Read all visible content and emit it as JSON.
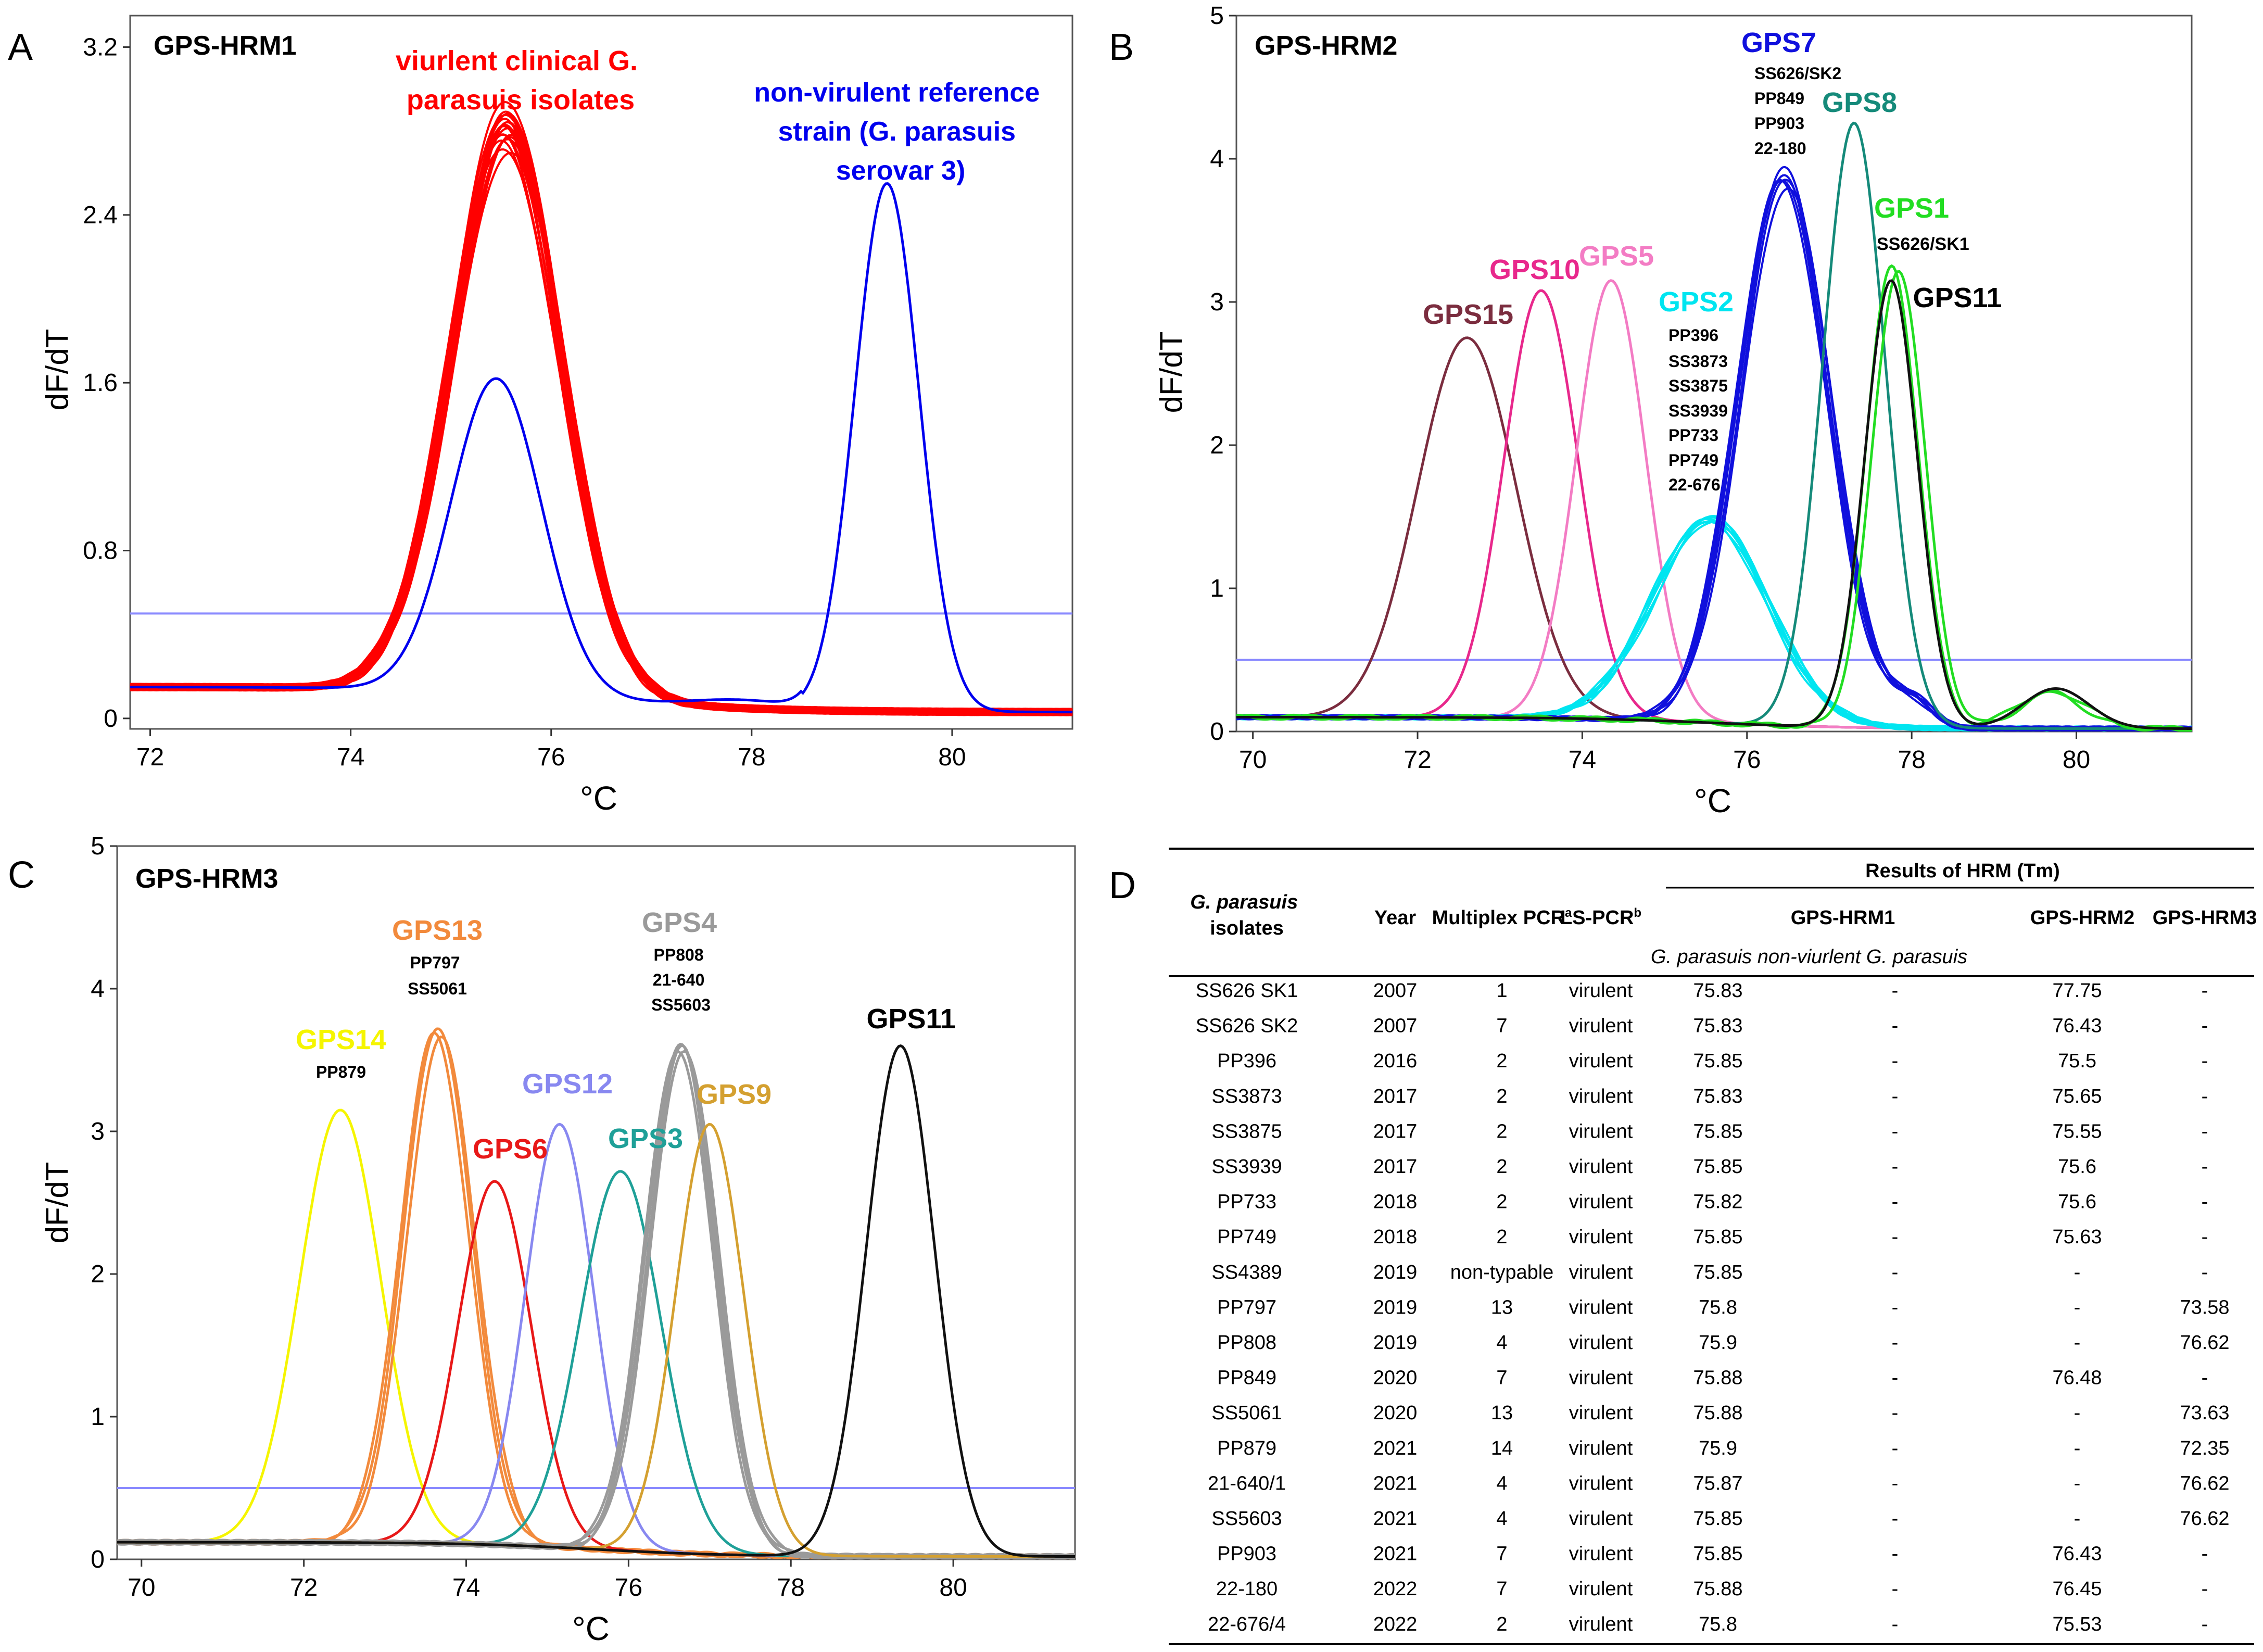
{
  "chart_data": [
    {
      "type": "line",
      "panel": "A",
      "title": "GPS-HRM1",
      "xlabel": "°C",
      "ylabel": "dF/dT",
      "xlim": [
        71.8,
        81.2
      ],
      "ylim": [
        -0.05,
        3.35
      ],
      "xticks": [
        72,
        74,
        76,
        78,
        80
      ],
      "yticks": [
        0,
        0.8,
        1.6,
        2.4,
        3.2
      ],
      "ytick_labels": [
        "0",
        "0.8",
        "1.6",
        "2.4",
        "3.2"
      ],
      "threshold": 0.5,
      "baseline_left": 0.15,
      "baseline_right": 0.03,
      "series": [
        {
          "name": "viurlent clinical isolates",
          "color": "#ff0000",
          "peaks": [
            [
              75.55,
              2.95,
              0.55
            ]
          ],
          "replicates": 19,
          "spread": 0.35
        },
        {
          "name": "reference strain main",
          "color": "#0000ee",
          "peaks": [
            [
              75.45,
              1.62,
              0.45
            ],
            [
              79.35,
              2.55,
              0.32
            ],
            [
              77.9,
              0.04,
              0.5
            ]
          ],
          "replicates": 1,
          "spread": 0
        }
      ],
      "annotations": [
        {
          "label": "viurlent clinical G. parasuis isolates",
          "lines": [
            "viurlent clinical G.",
            "parasuis isolates"
          ],
          "color": "#ff0000"
        },
        {
          "label": "non-virulent reference strain (G. parasuis serovar 3)",
          "lines": [
            "non-virulent reference",
            "strain (G. parasuis",
            "serovar 3)"
          ],
          "color": "#0000ee"
        }
      ]
    },
    {
      "type": "line",
      "panel": "B",
      "title": "GPS-HRM2",
      "xlabel": "°C",
      "ylabel": "dF/dT",
      "xlim": [
        69.8,
        81.4
      ],
      "ylim": [
        0,
        5
      ],
      "xticks": [
        70,
        72,
        74,
        76,
        78,
        80
      ],
      "yticks": [
        0,
        1,
        2,
        3,
        4,
        5
      ],
      "ytick_labels": [
        "0",
        "1",
        "2",
        "3",
        "4",
        "5"
      ],
      "threshold": 0.5,
      "baseline_left": 0.1,
      "baseline_right": 0.02,
      "series": [
        {
          "name": "GPS15",
          "color": "#7b2d3f",
          "peaks": [
            [
              72.6,
              2.75,
              0.6
            ]
          ],
          "replicates": 1,
          "spread": 0
        },
        {
          "name": "GPS10",
          "color": "#e8288c",
          "peaks": [
            [
              73.5,
              3.08,
              0.45
            ]
          ],
          "replicates": 1,
          "spread": 0
        },
        {
          "name": "GPS5",
          "color": "#f37cc4",
          "peaks": [
            [
              74.35,
              3.15,
              0.42
            ]
          ],
          "replicates": 1,
          "spread": 0
        },
        {
          "name": "GPS2",
          "color": "#00e5f0",
          "peaks": [
            [
              75.55,
              1.5,
              0.7
            ]
          ],
          "replicates": 7,
          "spread": 0.1
        },
        {
          "name": "GPS7",
          "color": "#1010dd",
          "peaks": [
            [
              76.45,
              3.95,
              0.55
            ],
            [
              78.0,
              0.2,
              0.25
            ]
          ],
          "replicates": 6,
          "spread": 0.15
        },
        {
          "name": "GPS8",
          "color": "#158a7a",
          "peaks": [
            [
              77.3,
              4.25,
              0.38
            ]
          ],
          "replicates": 1,
          "spread": 0
        },
        {
          "name": "GPS1",
          "color": "#22dd22",
          "peaks": [
            [
              77.8,
              3.3,
              0.32
            ],
            [
              79.7,
              0.28,
              0.4
            ]
          ],
          "replicates": 2,
          "spread": 0.1
        },
        {
          "name": "GPS11",
          "color": "#111111",
          "peaks": [
            [
              77.75,
              3.15,
              0.32
            ],
            [
              79.75,
              0.3,
              0.4
            ]
          ],
          "replicates": 1,
          "spread": 0
        }
      ],
      "annotations": [
        {
          "label": "GPS15",
          "lines": [
            "GPS15"
          ],
          "color": "#7b2d3f"
        },
        {
          "label": "GPS10",
          "lines": [
            "GPS10"
          ],
          "color": "#e8288c"
        },
        {
          "label": "GPS5",
          "lines": [
            "GPS5"
          ],
          "color": "#f37cc4"
        },
        {
          "label": "GPS2",
          "lines": [
            "GPS2"
          ],
          "color": "#00e5f0"
        },
        {
          "label": "GPS2 isolates",
          "lines": [
            "PP396",
            "SS3873",
            "SS3875",
            "SS3939",
            "PP733",
            "PP749",
            "22-676"
          ],
          "color": "#000000"
        },
        {
          "label": "GPS7",
          "lines": [
            "GPS7"
          ],
          "color": "#1010dd"
        },
        {
          "label": "GPS7 isolates",
          "lines": [
            "SS626/SK2",
            "PP849",
            "PP903",
            "22-180"
          ],
          "color": "#000000"
        },
        {
          "label": "GPS8",
          "lines": [
            "GPS8"
          ],
          "color": "#158a7a"
        },
        {
          "label": "GPS1",
          "lines": [
            "GPS1"
          ],
          "color": "#22dd22"
        },
        {
          "label": "GPS1 isolates",
          "lines": [
            "SS626/SK1"
          ],
          "color": "#000000"
        },
        {
          "label": "GPS11",
          "lines": [
            "GPS11"
          ],
          "color": "#000000"
        }
      ]
    },
    {
      "type": "line",
      "panel": "C",
      "title": "GPS-HRM3",
      "xlabel": "°C",
      "ylabel": "dF/dT",
      "xlim": [
        69.7,
        81.5
      ],
      "ylim": [
        0,
        5
      ],
      "xticks": [
        70,
        72,
        74,
        76,
        78,
        80
      ],
      "yticks": [
        0,
        1,
        2,
        3,
        4,
        5
      ],
      "ytick_labels": [
        "0",
        "1",
        "2",
        "3",
        "4",
        "5"
      ],
      "threshold": 0.5,
      "baseline_left": 0.12,
      "baseline_right": 0.02,
      "series": [
        {
          "name": "GPS14",
          "color": "#f5f500",
          "peaks": [
            [
              72.45,
              3.15,
              0.5
            ]
          ],
          "replicates": 1,
          "spread": 0
        },
        {
          "name": "GPS13",
          "color": "#f28a3c",
          "peaks": [
            [
              73.65,
              3.75,
              0.42
            ]
          ],
          "replicates": 3,
          "spread": 0.1
        },
        {
          "name": "GPS6",
          "color": "#e81818",
          "peaks": [
            [
              74.35,
              2.65,
              0.45
            ]
          ],
          "replicates": 1,
          "spread": 0
        },
        {
          "name": "GPS12",
          "color": "#8888f0",
          "peaks": [
            [
              75.15,
              3.05,
              0.42
            ]
          ],
          "replicates": 1,
          "spread": 0
        },
        {
          "name": "GPS3",
          "color": "#1fa098",
          "peaks": [
            [
              75.9,
              2.72,
              0.5
            ]
          ],
          "replicates": 1,
          "spread": 0
        },
        {
          "name": "GPS4",
          "color": "#9a9a9a",
          "peaks": [
            [
              76.65,
              3.65,
              0.42
            ]
          ],
          "replicates": 4,
          "spread": 0.12
        },
        {
          "name": "GPS9",
          "color": "#d4a030",
          "peaks": [
            [
              77.0,
              3.05,
              0.42
            ]
          ],
          "replicates": 1,
          "spread": 0
        },
        {
          "name": "GPS11",
          "color": "#111111",
          "peaks": [
            [
              79.35,
              3.6,
              0.42
            ]
          ],
          "replicates": 1,
          "spread": 0
        }
      ],
      "annotations": [
        {
          "label": "GPS14",
          "lines": [
            "GPS14"
          ],
          "color": "#f5f500"
        },
        {
          "label": "GPS14 isolates",
          "lines": [
            "PP879"
          ],
          "color": "#000000"
        },
        {
          "label": "GPS13",
          "lines": [
            "GPS13"
          ],
          "color": "#f28a3c"
        },
        {
          "label": "GPS13 isolates",
          "lines": [
            "PP797",
            "SS5061"
          ],
          "color": "#000000"
        },
        {
          "label": "GPS6",
          "lines": [
            "GPS6"
          ],
          "color": "#e81818"
        },
        {
          "label": "GPS12",
          "lines": [
            "GPS12"
          ],
          "color": "#8888f0"
        },
        {
          "label": "GPS3",
          "lines": [
            "GPS3"
          ],
          "color": "#1fa098"
        },
        {
          "label": "GPS4",
          "lines": [
            "GPS4"
          ],
          "color": "#9a9a9a"
        },
        {
          "label": "GPS4 isolates",
          "lines": [
            "PP808",
            "21-640",
            "SS5603"
          ],
          "color": "#000000"
        },
        {
          "label": "GPS9",
          "lines": [
            "GPS9"
          ],
          "color": "#d4a030"
        },
        {
          "label": "GPS11",
          "lines": [
            "GPS11"
          ],
          "color": "#000000"
        }
      ]
    },
    {
      "type": "table",
      "panel": "D",
      "header_top": "Results of HRM (Tm)",
      "headers": {
        "isolates": [
          "G. parasuis",
          "isolates"
        ],
        "year": "Year",
        "multiplex": "Multiplex PCR",
        "multiplex_sup": "a",
        "ls": "LS-PCR",
        "ls_sup": "b",
        "hrm1": "GPS-HRM1",
        "hrm2": "GPS-HRM2",
        "hrm3": "GPS-HRM3",
        "sub_gp": "G. parasuis",
        "sub_nv": "non-viurlent G. parasuis"
      },
      "rows": [
        [
          "SS626 SK1",
          "2007",
          "1",
          "virulent",
          "75.83",
          "-",
          "77.75",
          "-"
        ],
        [
          "SS626 SK2",
          "2007",
          "7",
          "virulent",
          "75.83",
          "-",
          "76.43",
          "-"
        ],
        [
          "PP396",
          "2016",
          "2",
          "virulent",
          "75.85",
          "-",
          "75.5",
          "-"
        ],
        [
          "SS3873",
          "2017",
          "2",
          "virulent",
          "75.83",
          "-",
          "75.65",
          "-"
        ],
        [
          "SS3875",
          "2017",
          "2",
          "virulent",
          "75.85",
          "-",
          "75.55",
          "-"
        ],
        [
          "SS3939",
          "2017",
          "2",
          "virulent",
          "75.85",
          "-",
          "75.6",
          "-"
        ],
        [
          "PP733",
          "2018",
          "2",
          "virulent",
          "75.82",
          "-",
          "75.6",
          "-"
        ],
        [
          "PP749",
          "2018",
          "2",
          "virulent",
          "75.85",
          "-",
          "75.63",
          "-"
        ],
        [
          "SS4389",
          "2019",
          "non-typable",
          "virulent",
          "75.85",
          "-",
          "-",
          "-"
        ],
        [
          "PP797",
          "2019",
          "13",
          "virulent",
          "75.8",
          "-",
          "-",
          "73.58"
        ],
        [
          "PP808",
          "2019",
          "4",
          "virulent",
          "75.9",
          "-",
          "-",
          "76.62"
        ],
        [
          "PP849",
          "2020",
          "7",
          "virulent",
          "75.88",
          "-",
          "76.48",
          "-"
        ],
        [
          "SS5061",
          "2020",
          "13",
          "virulent",
          "75.88",
          "-",
          "-",
          "73.63"
        ],
        [
          "PP879",
          "2021",
          "14",
          "virulent",
          "75.9",
          "-",
          "-",
          "72.35"
        ],
        [
          "21-640/1",
          "2021",
          "4",
          "virulent",
          "75.87",
          "-",
          "-",
          "76.62"
        ],
        [
          "SS5603",
          "2021",
          "4",
          "virulent",
          "75.85",
          "-",
          "-",
          "76.62"
        ],
        [
          "PP903",
          "2021",
          "7",
          "virulent",
          "75.85",
          "-",
          "76.43",
          "-"
        ],
        [
          "22-180",
          "2022",
          "7",
          "virulent",
          "75.88",
          "-",
          "76.45",
          "-"
        ],
        [
          "22-676/4",
          "2022",
          "2",
          "virulent",
          "75.8",
          "-",
          "75.53",
          "-"
        ]
      ]
    }
  ],
  "panel_letters": {
    "a": "A",
    "b": "B",
    "c": "C",
    "d": "D"
  },
  "colors": {
    "threshold": "#8a8aff",
    "axis": "#333333"
  }
}
